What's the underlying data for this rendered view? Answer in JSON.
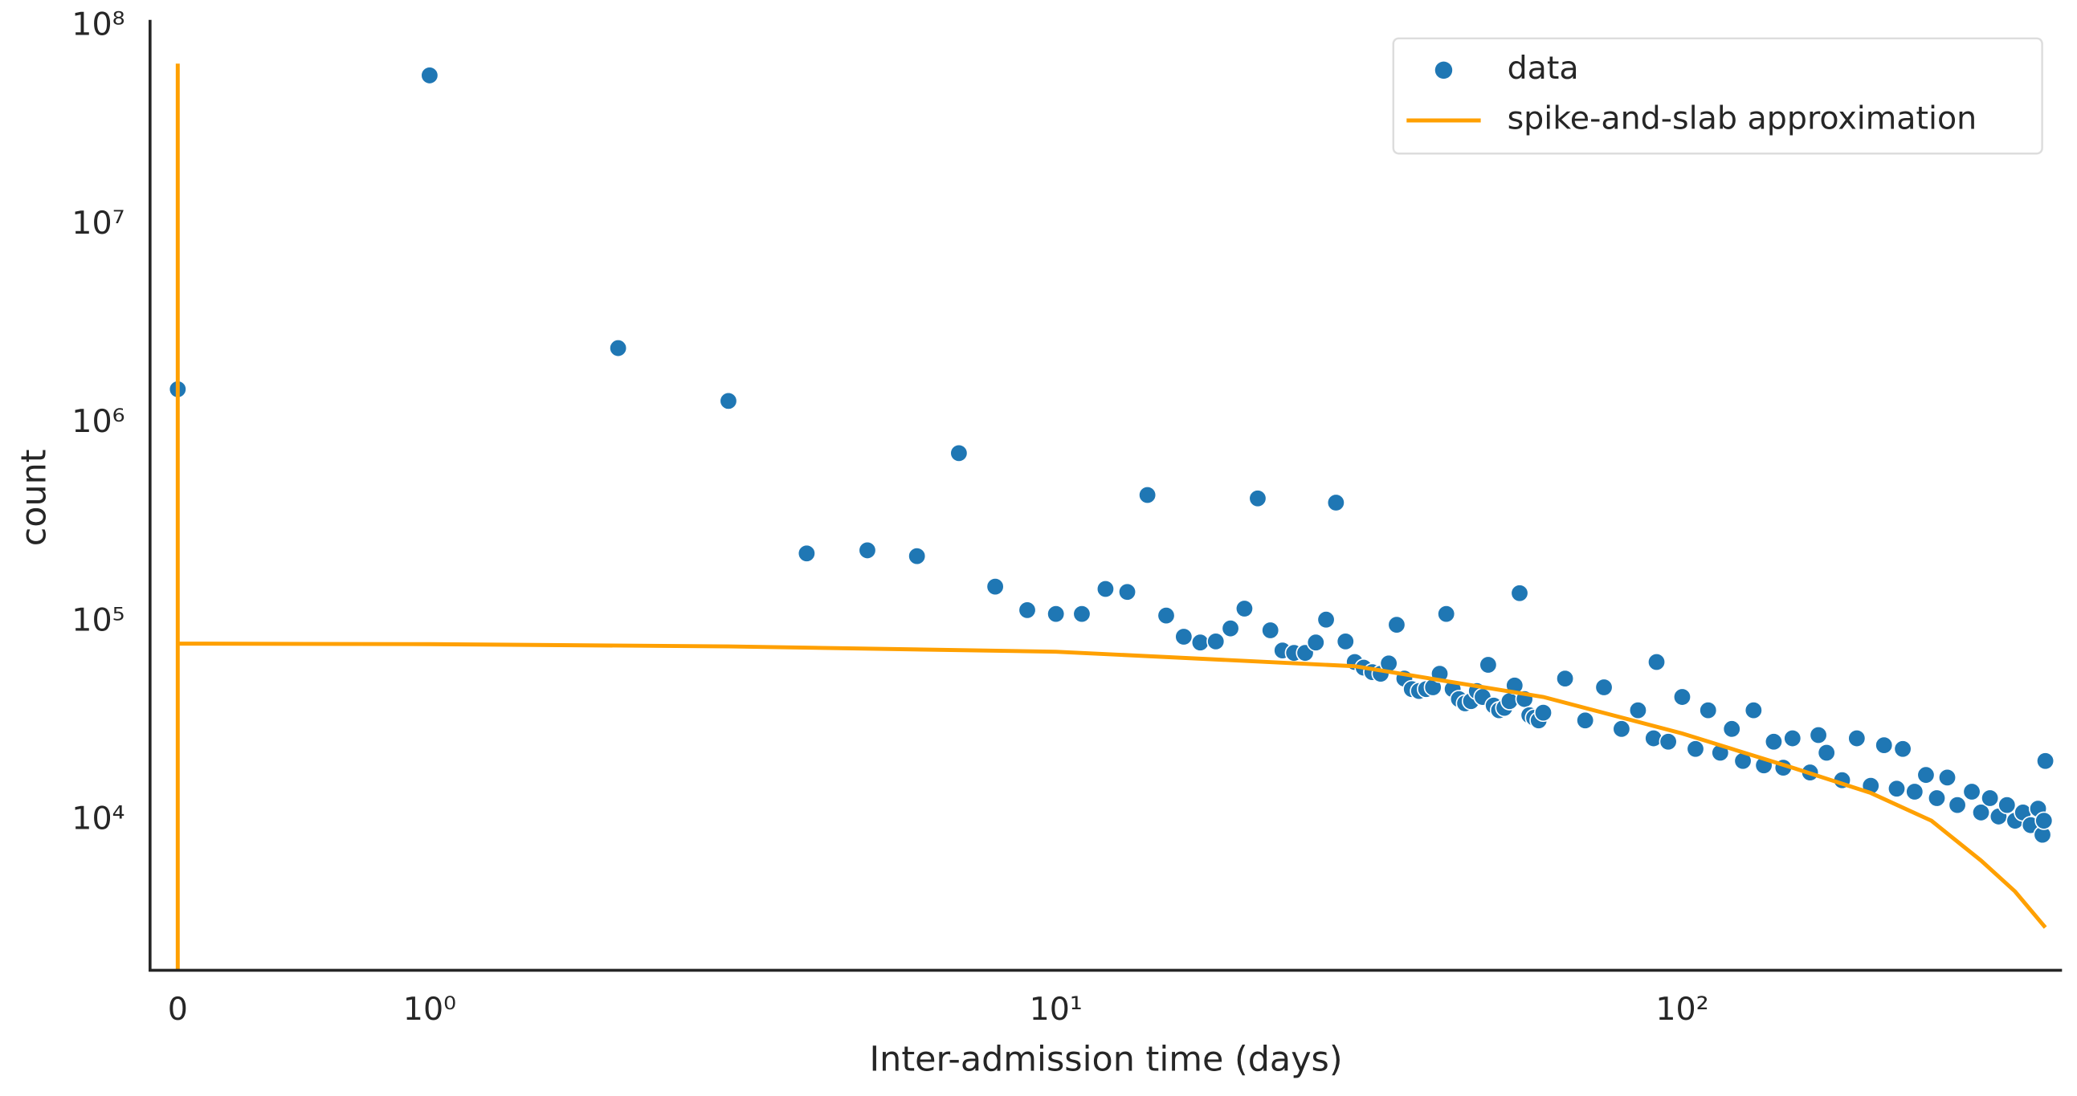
{
  "chart_data": {
    "type": "scatter",
    "xlabel": "Inter-admission time (days)",
    "ylabel": "count",
    "xscale": "symlog",
    "linthresh": 1,
    "yscale": "log",
    "xlim": [
      -0.11,
      404
    ],
    "ylim": [
      1766,
      108000000
    ],
    "xticks": [
      0,
      {
        "value": 1,
        "label": "10⁰"
      },
      {
        "value": 10,
        "label": "10¹"
      },
      {
        "value": 100,
        "label": "10²"
      }
    ],
    "yticks": [
      {
        "value": 10000,
        "label": "10⁴"
      },
      {
        "value": 100000,
        "label": "10⁵"
      },
      {
        "value": 1000000,
        "label": "10⁶"
      },
      {
        "value": 10000000,
        "label": "10⁷"
      },
      {
        "value": 100000000,
        "label": "10⁸"
      }
    ],
    "grid": false,
    "legend": "upper right",
    "series": [
      {
        "name": "data",
        "type": "scatter",
        "color": "#1f77b4",
        "x": [
          0,
          1,
          2,
          3,
          4,
          5,
          6,
          7,
          8,
          9,
          10,
          11,
          12,
          13,
          14,
          15,
          16,
          17,
          18,
          19,
          20,
          21,
          22,
          23,
          24,
          25,
          26,
          27,
          28,
          29,
          30,
          31,
          32,
          33,
          34,
          35,
          36,
          37,
          38,
          39,
          40,
          41,
          42,
          43,
          44,
          45,
          46,
          47,
          48,
          49,
          50,
          51,
          52,
          53,
          54,
          55,
          56,
          57,
          58,
          59,
          60,
          65,
          70,
          75,
          80,
          85,
          90,
          91,
          95,
          100,
          105,
          110,
          115,
          120,
          125,
          130,
          135,
          140,
          145,
          150,
          160,
          165,
          170,
          180,
          190,
          200,
          210,
          220,
          225,
          235,
          245,
          255,
          265,
          275,
          290,
          300,
          310,
          320,
          330,
          340,
          350,
          360,
          370,
          376,
          378,
          380
        ],
        "values": [
          1490000,
          56700000,
          2400000,
          1300000,
          222000,
          230000,
          215000,
          710000,
          151000,
          115000,
          110000,
          110000,
          147000,
          142000,
          437000,
          108000,
          84500,
          79000,
          80000,
          93000,
          117000,
          420000,
          91000,
          72000,
          70000,
          70000,
          79000,
          103000,
          400000,
          80000,
          63000,
          59000,
          56000,
          55000,
          62000,
          97000,
          52000,
          46000,
          45000,
          46000,
          47000,
          55000,
          110000,
          46000,
          41000,
          39000,
          40000,
          45000,
          42000,
          61000,
          38000,
          36000,
          37000,
          40000,
          48000,
          140000,
          41000,
          34000,
          33000,
          32000,
          35000,
          52000,
          32000,
          47000,
          29000,
          36000,
          26000,
          63000,
          25000,
          42000,
          23000,
          36000,
          22000,
          29000,
          20000,
          36000,
          19000,
          25000,
          18500,
          26000,
          17500,
          27000,
          22000,
          16000,
          26000,
          15000,
          24000,
          14500,
          23000,
          14000,
          17000,
          13000,
          16500,
          12000,
          14000,
          11000,
          13000,
          10500,
          12000,
          10000,
          11000,
          9500,
          11500,
          8500,
          10000,
          20000
        ]
      },
      {
        "name": "spike-and-slab approximation",
        "type": "line",
        "color": "#ffa000",
        "x": [
          0,
          0,
          0,
          1,
          3,
          10,
          30,
          60,
          100,
          150,
          200,
          250,
          300,
          340,
          380
        ],
        "values": [
          1000,
          65000000,
          78000,
          77500,
          75500,
          71000,
          60000,
          42000,
          27500,
          18500,
          13800,
          10000,
          6300,
          4400,
          2900
        ]
      }
    ]
  }
}
